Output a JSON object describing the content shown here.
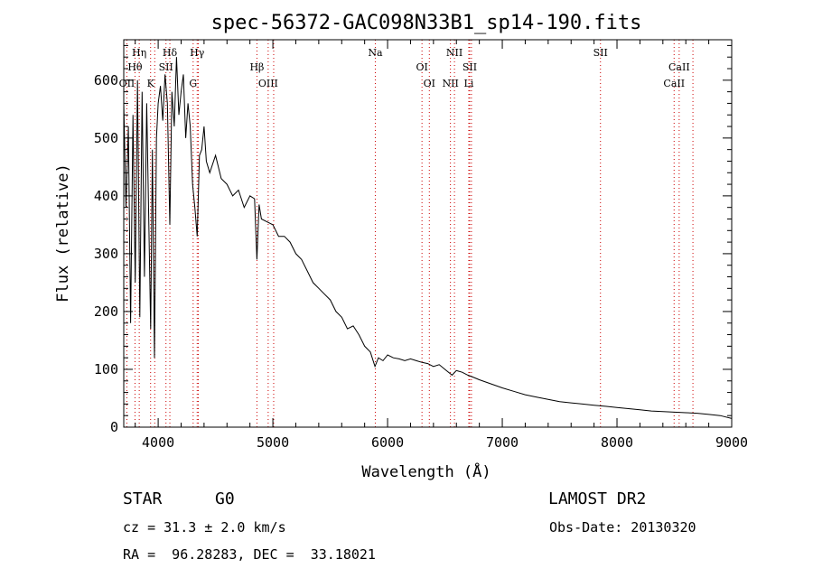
{
  "chart_data": {
    "type": "line",
    "title": "spec-56372-GAC098N33B1_sp14-190.fits",
    "xlabel": "Wavelength (Å)",
    "ylabel": "Flux (relative)",
    "xlim": [
      3700,
      9000
    ],
    "ylim": [
      0,
      670
    ],
    "xticks": [
      4000,
      5000,
      6000,
      7000,
      8000,
      9000
    ],
    "yticks": [
      0,
      100,
      200,
      300,
      400,
      500,
      600
    ],
    "grid": false,
    "series": [
      {
        "x": [
          3700,
          3720,
          3740,
          3760,
          3780,
          3800,
          3820,
          3840,
          3860,
          3880,
          3900,
          3920,
          3935,
          3950,
          3968,
          3985,
          4000,
          4020,
          4040,
          4060,
          4080,
          4102,
          4120,
          4140,
          4160,
          4180,
          4200,
          4220,
          4240,
          4260,
          4280,
          4300,
          4320,
          4340,
          4360,
          4380,
          4400,
          4420,
          4450,
          4500,
          4550,
          4600,
          4650,
          4700,
          4750,
          4800,
          4840,
          4861,
          4880,
          4900,
          4950,
          5000,
          5050,
          5100,
          5150,
          5200,
          5250,
          5300,
          5350,
          5400,
          5450,
          5500,
          5550,
          5600,
          5650,
          5700,
          5750,
          5800,
          5850,
          5890,
          5920,
          5960,
          6000,
          6050,
          6100,
          6150,
          6200,
          6250,
          6300,
          6350,
          6400,
          6450,
          6500,
          6563,
          6600,
          6650,
          6700,
          6750,
          6800,
          6900,
          7000,
          7100,
          7200,
          7300,
          7400,
          7500,
          7600,
          7700,
          7800,
          7900,
          8000,
          8100,
          8200,
          8300,
          8400,
          8500,
          8600,
          8700,
          8800,
          8900,
          9000
        ],
        "y": [
          560,
          380,
          520,
          180,
          540,
          250,
          600,
          190,
          580,
          260,
          560,
          340,
          170,
          480,
          120,
          500,
          560,
          590,
          530,
          610,
          560,
          350,
          580,
          520,
          640,
          540,
          580,
          610,
          500,
          560,
          520,
          420,
          380,
          330,
          470,
          480,
          520,
          460,
          440,
          470,
          430,
          420,
          400,
          410,
          380,
          400,
          395,
          290,
          385,
          360,
          355,
          350,
          330,
          330,
          320,
          300,
          290,
          270,
          250,
          240,
          230,
          220,
          200,
          190,
          170,
          175,
          160,
          140,
          130,
          105,
          120,
          115,
          125,
          120,
          118,
          115,
          118,
          115,
          112,
          110,
          105,
          108,
          100,
          90,
          98,
          95,
          90,
          86,
          82,
          75,
          68,
          62,
          56,
          52,
          48,
          44,
          42,
          40,
          38,
          36,
          34,
          32,
          30,
          28,
          27,
          26,
          25,
          24,
          22,
          20,
          15
        ]
      }
    ],
    "lines_upper": [
      {
        "label": "Hη",
        "x": 3835
      },
      {
        "label": "Hθ",
        "x": 3798
      },
      {
        "label": "Hδ",
        "x": 4102
      },
      {
        "label": "SII",
        "x": 4068
      },
      {
        "label": "Hγ",
        "x": 4340
      },
      {
        "label": "Hβ",
        "x": 4861
      },
      {
        "label": "Na",
        "x": 5893
      },
      {
        "label": "OI",
        "x": 6300
      },
      {
        "label": "NII",
        "x": 6583
      },
      {
        "label": "SII",
        "x": 6716
      },
      {
        "label": "SII",
        "x": 7856
      },
      {
        "label": "CaII",
        "x": 8542
      }
    ],
    "lines_lower": [
      {
        "label": "OII",
        "x": 3727
      },
      {
        "label": "K",
        "x": 3934
      },
      {
        "label": "G",
        "x": 4305
      },
      {
        "label": "OIII",
        "x": 4959
      },
      {
        "label": "OI",
        "x": 6364
      },
      {
        "label": "NII",
        "x": 6548
      },
      {
        "label": "Li",
        "x": 6708
      },
      {
        "label": "CaII",
        "x": 8498
      }
    ],
    "extra_dotted_x": [
      3970,
      4350,
      5007,
      6731,
      8662
    ]
  },
  "info": {
    "class_label": "STAR",
    "subclass": "G0",
    "survey": "LAMOST DR2",
    "redshift": "cz = 31.3 ± 2.0 km/s",
    "obsdate": "Obs-Date: 20130320",
    "coords": "RA =  96.28283, DEC =  33.18021"
  }
}
